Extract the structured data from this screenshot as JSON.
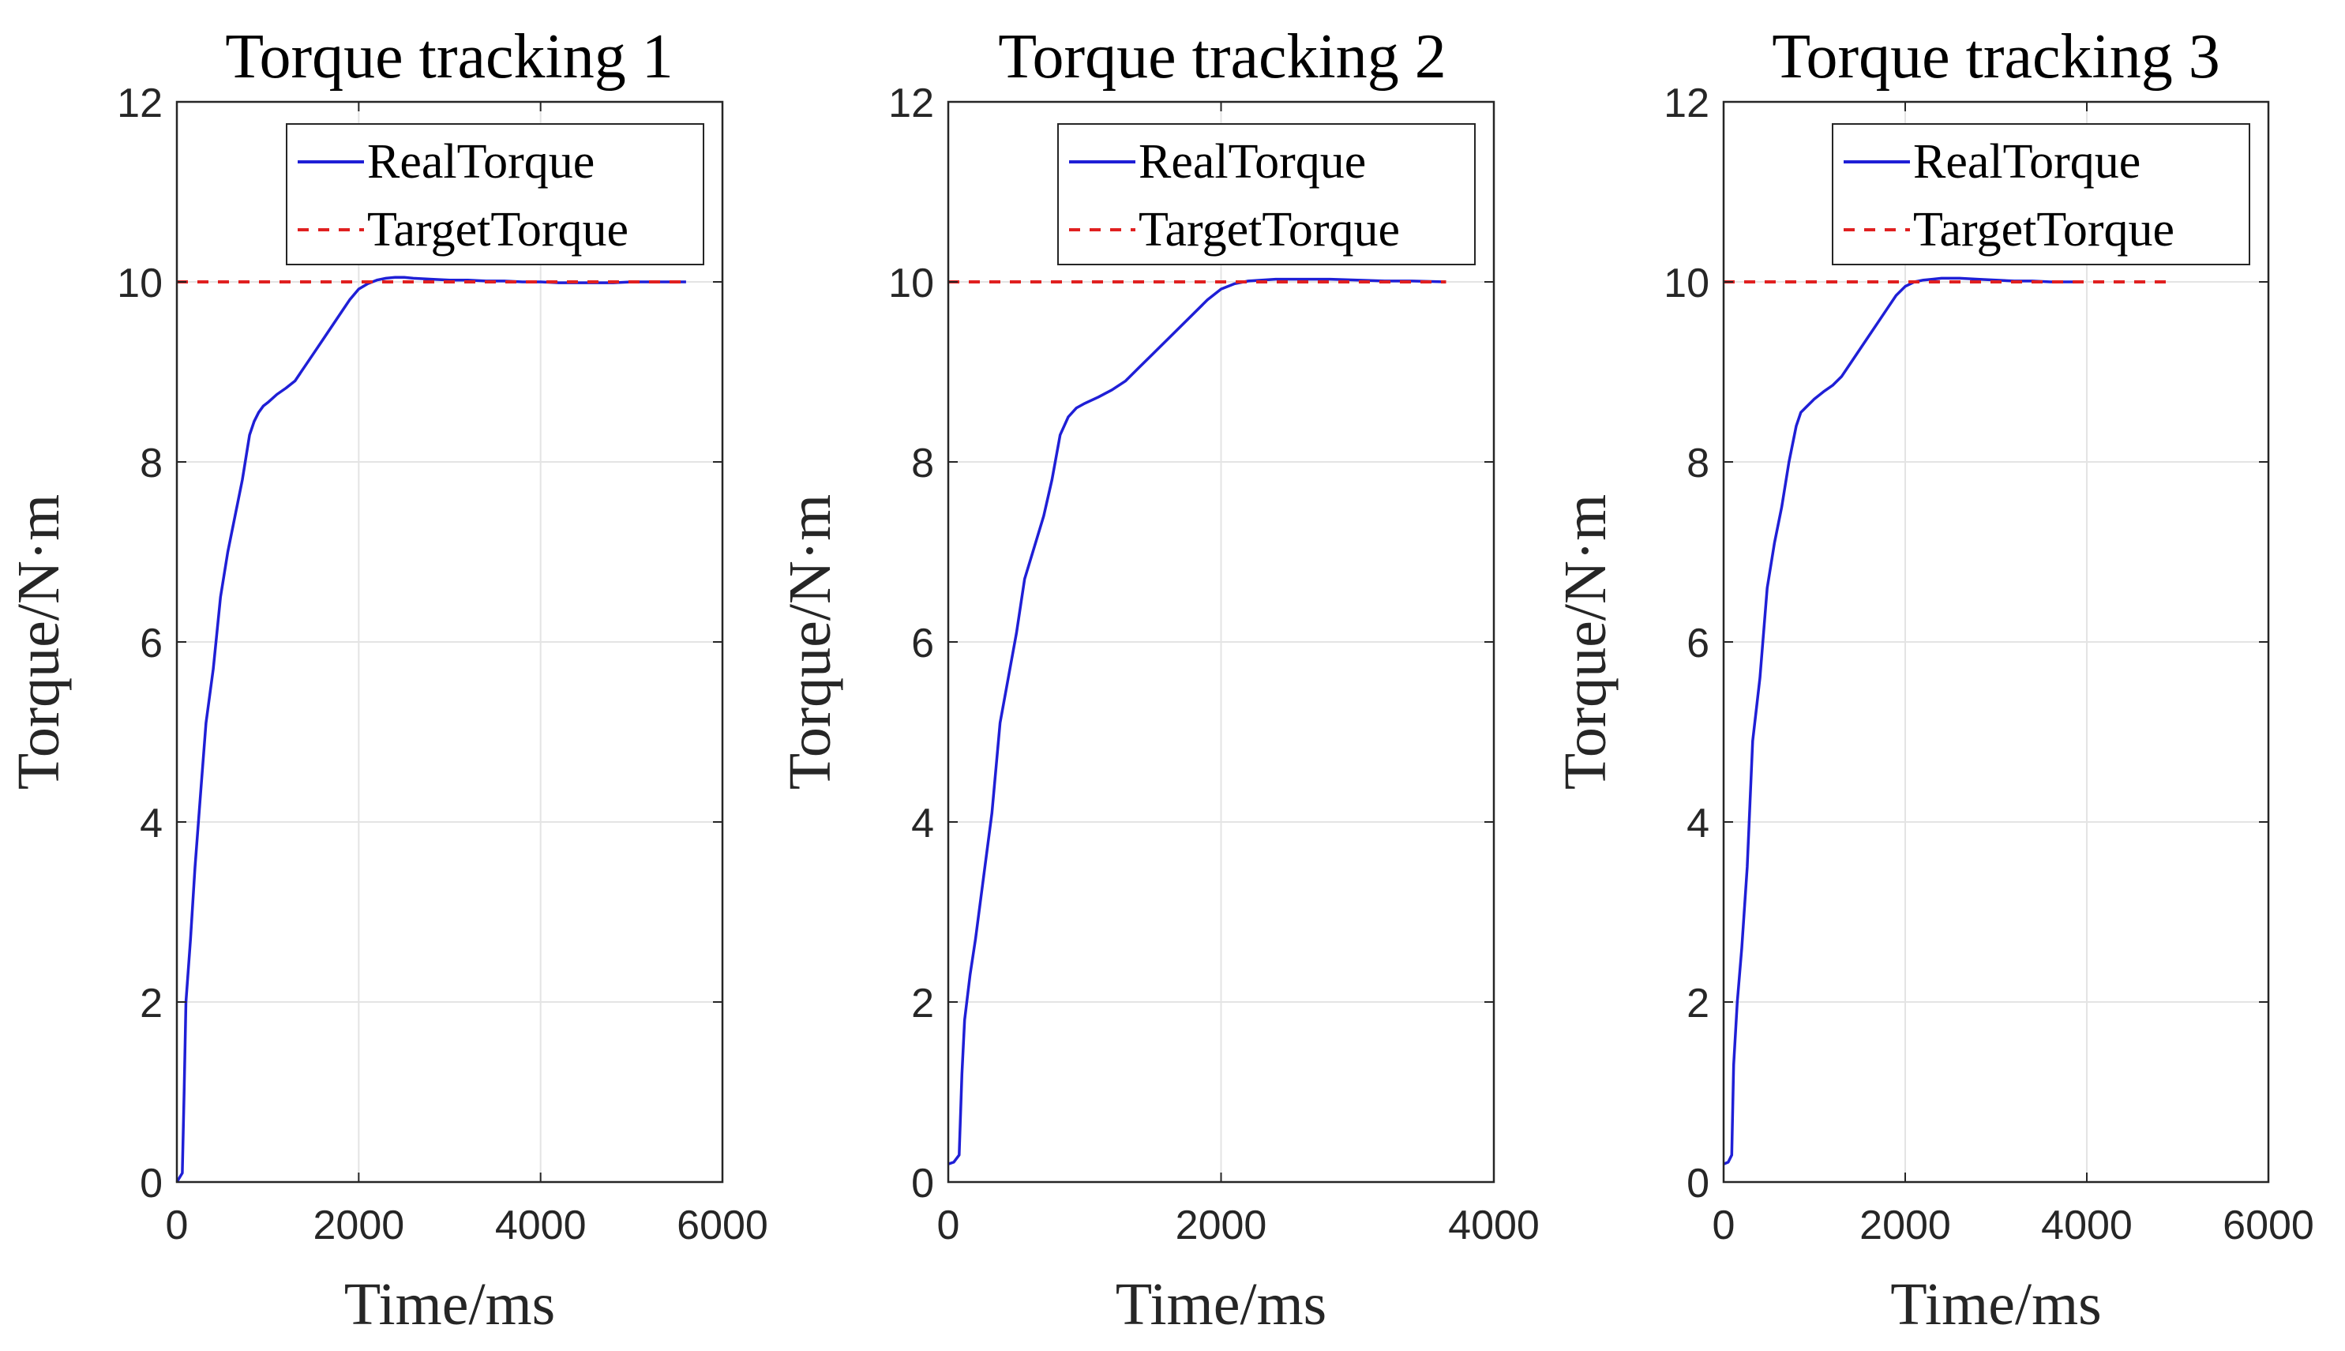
{
  "figure": {
    "background": "#ffffff",
    "real_color": "#1f1fd6",
    "target_color": "#e02020"
  },
  "legend": {
    "real_label": "RealTorque",
    "target_label": "TargetTorque"
  },
  "chart_data": [
    {
      "type": "line",
      "title": "Torque tracking 1",
      "xlabel": "Time/ms",
      "ylabel": "Torque/N·m",
      "xlim": [
        0,
        6000
      ],
      "ylim": [
        0,
        12
      ],
      "xticks": [
        0,
        2000,
        4000,
        6000
      ],
      "yticks": [
        0,
        2,
        4,
        6,
        8,
        10,
        12
      ],
      "grid": true,
      "legend_position": "northeast",
      "series": [
        {
          "name": "RealTorque",
          "style": "solid",
          "x": [
            0,
            60,
            80,
            100,
            150,
            200,
            260,
            320,
            400,
            480,
            560,
            640,
            720,
            800,
            850,
            900,
            950,
            1000,
            1100,
            1200,
            1300,
            1400,
            1500,
            1600,
            1700,
            1800,
            1900,
            2000,
            2100,
            2200,
            2300,
            2400,
            2500,
            2600,
            2800,
            3000,
            3200,
            3400,
            3600,
            3800,
            4000,
            4200,
            4400,
            4600,
            4800,
            5000,
            5200,
            5400,
            5600
          ],
          "y": [
            0.0,
            0.1,
            1.0,
            2.0,
            2.7,
            3.5,
            4.3,
            5.1,
            5.7,
            6.5,
            7.0,
            7.4,
            7.8,
            8.3,
            8.45,
            8.55,
            8.62,
            8.66,
            8.75,
            8.82,
            8.9,
            9.05,
            9.2,
            9.35,
            9.5,
            9.65,
            9.8,
            9.92,
            9.98,
            10.02,
            10.04,
            10.05,
            10.05,
            10.04,
            10.03,
            10.02,
            10.02,
            10.01,
            10.01,
            10.0,
            10.0,
            9.99,
            9.99,
            9.99,
            9.99,
            10.0,
            10.0,
            10.0,
            10.0
          ]
        },
        {
          "name": "TargetTorque",
          "style": "dashed",
          "x": [
            0,
            5600
          ],
          "y": [
            10,
            10
          ]
        }
      ]
    },
    {
      "type": "line",
      "title": "Torque tracking 2",
      "xlabel": "Time/ms",
      "ylabel": "Torque/N·m",
      "xlim": [
        0,
        4000
      ],
      "ylim": [
        0,
        12
      ],
      "xticks": [
        0,
        2000,
        4000
      ],
      "yticks": [
        0,
        2,
        4,
        6,
        8,
        10,
        12
      ],
      "grid": true,
      "legend_position": "northeast",
      "series": [
        {
          "name": "RealTorque",
          "style": "solid",
          "x": [
            0,
            40,
            80,
            100,
            120,
            160,
            200,
            260,
            320,
            380,
            440,
            500,
            560,
            620,
            700,
            760,
            820,
            880,
            940,
            1000,
            1100,
            1200,
            1300,
            1400,
            1500,
            1600,
            1700,
            1800,
            1900,
            2000,
            2100,
            2200,
            2300,
            2400,
            2500,
            2600,
            2800,
            3000,
            3200,
            3400,
            3650
          ],
          "y": [
            0.2,
            0.22,
            0.3,
            1.2,
            1.8,
            2.3,
            2.7,
            3.4,
            4.1,
            5.1,
            5.6,
            6.1,
            6.7,
            7.0,
            7.4,
            7.8,
            8.3,
            8.5,
            8.6,
            8.65,
            8.72,
            8.8,
            8.9,
            9.05,
            9.2,
            9.35,
            9.5,
            9.65,
            9.8,
            9.92,
            9.98,
            10.01,
            10.02,
            10.03,
            10.03,
            10.03,
            10.03,
            10.02,
            10.01,
            10.01,
            10.0
          ]
        },
        {
          "name": "TargetTorque",
          "style": "dashed",
          "x": [
            0,
            3650
          ],
          "y": [
            10,
            10
          ]
        }
      ]
    },
    {
      "type": "line",
      "title": "Torque tracking 3",
      "xlabel": "Time/ms",
      "ylabel": "Torque/N·m",
      "xlim": [
        0,
        6000
      ],
      "ylim": [
        0,
        12
      ],
      "xticks": [
        0,
        2000,
        4000,
        6000
      ],
      "yticks": [
        0,
        2,
        4,
        6,
        8,
        10,
        12
      ],
      "grid": true,
      "legend_position": "northeast",
      "series": [
        {
          "name": "RealTorque",
          "style": "solid",
          "x": [
            0,
            50,
            90,
            110,
            150,
            200,
            260,
            320,
            400,
            480,
            560,
            640,
            720,
            800,
            850,
            900,
            950,
            1000,
            1100,
            1200,
            1300,
            1400,
            1500,
            1600,
            1700,
            1800,
            1900,
            2000,
            2100,
            2200,
            2300,
            2400,
            2500,
            2600,
            2800,
            3000,
            3200,
            3400,
            3600,
            3900
          ],
          "y": [
            0.2,
            0.22,
            0.3,
            1.3,
            2.0,
            2.6,
            3.5,
            4.9,
            5.6,
            6.6,
            7.1,
            7.5,
            8.0,
            8.4,
            8.55,
            8.6,
            8.65,
            8.7,
            8.78,
            8.85,
            8.95,
            9.1,
            9.25,
            9.4,
            9.55,
            9.7,
            9.85,
            9.95,
            10.0,
            10.02,
            10.03,
            10.04,
            10.04,
            10.04,
            10.03,
            10.02,
            10.01,
            10.01,
            10.0,
            10.0
          ]
        },
        {
          "name": "TargetTorque",
          "style": "dashed",
          "x": [
            0,
            4950
          ],
          "y": [
            10,
            10
          ]
        }
      ]
    }
  ]
}
